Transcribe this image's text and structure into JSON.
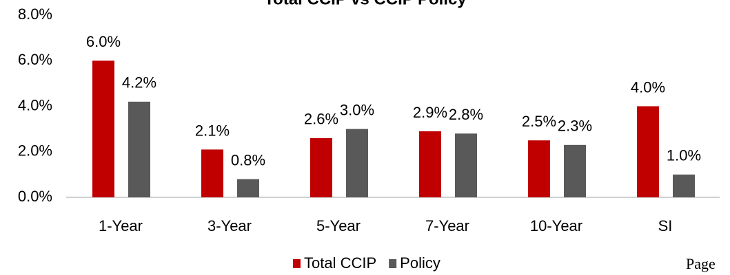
{
  "chart_data": {
    "type": "bar",
    "title": "Total CCIP vs CCIP Policy",
    "categories": [
      "1-Year",
      "3-Year",
      "5-Year",
      "7-Year",
      "10-Year",
      "SI"
    ],
    "series": [
      {
        "name": "Total CCIP",
        "color": "#c00000",
        "values": [
          6.0,
          2.1,
          2.6,
          2.9,
          2.5,
          4.0
        ],
        "value_labels": [
          "6.0%",
          "2.1%",
          "2.6%",
          "2.9%",
          "2.5%",
          "4.0%"
        ]
      },
      {
        "name": "Policy",
        "color": "#595959",
        "values": [
          4.2,
          0.8,
          3.0,
          2.8,
          2.3,
          1.0
        ],
        "value_labels": [
          "4.2%",
          "0.8%",
          "3.0%",
          "2.8%",
          "2.3%",
          "1.0%"
        ]
      }
    ],
    "ylim": [
      0,
      8
    ],
    "yticks": [
      {
        "value": 0,
        "label": "0.0%"
      },
      {
        "value": 2,
        "label": "2.0%"
      },
      {
        "value": 4,
        "label": "4.0%"
      },
      {
        "value": 6,
        "label": "6.0%"
      },
      {
        "value": 8,
        "label": "8.0%"
      }
    ],
    "grid": false,
    "legend": "bottom"
  },
  "page_label": "Page"
}
